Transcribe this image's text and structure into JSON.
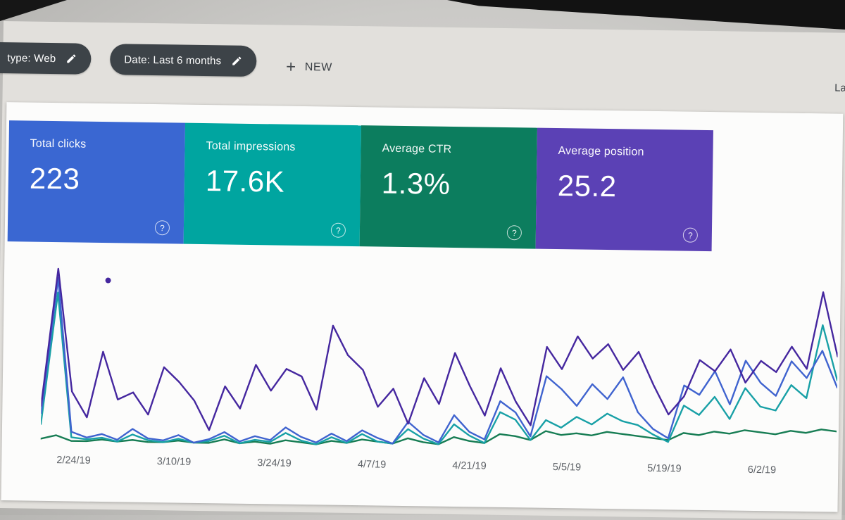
{
  "header": {
    "filter_chips": [
      {
        "label": "type: Web"
      },
      {
        "label": "Date: Last 6 months"
      }
    ],
    "plus_icon": "+",
    "new_button_label": "NEW",
    "right_partial_text": "La"
  },
  "metric_cards": [
    {
      "label": "Total clicks",
      "value": "223",
      "color": "#3a67d2",
      "help_icon": "?"
    },
    {
      "label": "Total impressions",
      "value": "17.6K",
      "color": "#00a5a0",
      "help_icon": "?"
    },
    {
      "label": "Average CTR",
      "value": "1.3%",
      "color": "#0c7d5e",
      "help_icon": "?"
    },
    {
      "label": "Average position",
      "value": "25.2",
      "color": "#5b41b5",
      "help_icon": "?"
    }
  ],
  "chart_data": {
    "type": "line",
    "title": "",
    "x_tick_labels": [
      "2/24/19",
      "3/10/19",
      "3/24/19",
      "4/7/19",
      "4/21/19",
      "5/5/19",
      "5/19/19",
      "6/2/19"
    ],
    "y_axis_visible": false,
    "grid": false,
    "legend_visible": false,
    "ylim_percent": [
      0,
      100
    ],
    "series": [
      {
        "name": "Average CTR",
        "color": "#177d54",
        "values": [
          4,
          6,
          3,
          3,
          4,
          3,
          4,
          3,
          3,
          4,
          3,
          3,
          5,
          3,
          4,
          3,
          5,
          4,
          3,
          5,
          4,
          6,
          5,
          4,
          7,
          5,
          4,
          8,
          6,
          5,
          10,
          9,
          7,
          12,
          10,
          11,
          10,
          12,
          11,
          10,
          9,
          8,
          12,
          11,
          13,
          12,
          14,
          13,
          12,
          14,
          13,
          15,
          14
        ]
      },
      {
        "name": "Total impressions",
        "color": "#18a0a6",
        "values": [
          12,
          84,
          5,
          4,
          5,
          3,
          7,
          4,
          3,
          5,
          3,
          4,
          7,
          3,
          5,
          4,
          9,
          5,
          3,
          7,
          4,
          9,
          5,
          4,
          12,
          7,
          4,
          15,
          9,
          5,
          22,
          18,
          7,
          18,
          14,
          20,
          16,
          22,
          18,
          16,
          11,
          7,
          27,
          22,
          32,
          20,
          37,
          27,
          25,
          39,
          32,
          72,
          42
        ]
      },
      {
        "name": "Total clicks",
        "color": "#3f63cf",
        "values": [
          18,
          92,
          8,
          5,
          7,
          4,
          10,
          5,
          4,
          7,
          3,
          5,
          9,
          4,
          7,
          5,
          12,
          7,
          4,
          9,
          5,
          11,
          7,
          4,
          16,
          9,
          5,
          20,
          11,
          7,
          28,
          22,
          9,
          42,
          35,
          26,
          38,
          30,
          42,
          23,
          14,
          9,
          38,
          33,
          46,
          28,
          52,
          40,
          33,
          52,
          43,
          58,
          38
        ]
      },
      {
        "name": "Average position",
        "color": "#45279f",
        "values": [
          22,
          97,
          30,
          16,
          52,
          26,
          30,
          18,
          44,
          36,
          26,
          10,
          34,
          22,
          46,
          32,
          44,
          40,
          22,
          68,
          52,
          44,
          24,
          34,
          15,
          40,
          26,
          54,
          36,
          20,
          46,
          28,
          15,
          58,
          46,
          64,
          52,
          60,
          46,
          56,
          38,
          22,
          32,
          52,
          46,
          58,
          40,
          52,
          46,
          60,
          48,
          90,
          55
        ]
      }
    ],
    "outlier_dot": {
      "x_fraction": 0.082,
      "value": 91,
      "color": "#45279f"
    }
  }
}
